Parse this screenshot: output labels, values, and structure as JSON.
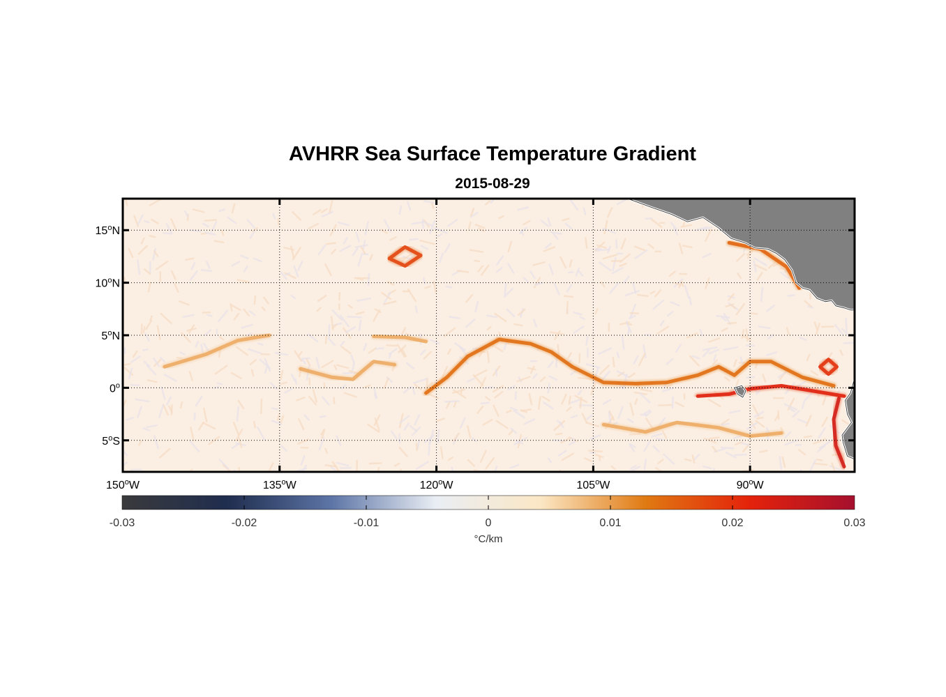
{
  "figure": {
    "title": "AVHRR Sea Surface Temperature Gradient",
    "subtitle": "2015-08-29"
  },
  "map": {
    "lon_range": [
      -150,
      -80
    ],
    "lat_range": [
      -8,
      18
    ],
    "land_color": "#808080",
    "coast_color": "#ffffff",
    "grid": "dotted",
    "lon_ticks": [
      {
        "value": -150,
        "label": "150",
        "suffix": "W"
      },
      {
        "value": -135,
        "label": "135",
        "suffix": "W"
      },
      {
        "value": -120,
        "label": "120",
        "suffix": "W"
      },
      {
        "value": -105,
        "label": "105",
        "suffix": "W"
      },
      {
        "value": -90,
        "label": "90",
        "suffix": "W"
      }
    ],
    "lat_ticks": [
      {
        "value": 15,
        "label": "15",
        "suffix": "N"
      },
      {
        "value": 10,
        "label": "10",
        "suffix": "N"
      },
      {
        "value": 5,
        "label": "5",
        "suffix": "N"
      },
      {
        "value": 0,
        "label": "0",
        "suffix": ""
      },
      {
        "value": -5,
        "label": "5",
        "suffix": "S"
      }
    ],
    "features": [
      {
        "name": "equatorial-front",
        "strength": 0.014,
        "points": [
          [
            -121,
            -0.5
          ],
          [
            -119,
            1
          ],
          [
            -117,
            3
          ],
          [
            -114,
            4.6
          ],
          [
            -111,
            4.2
          ],
          [
            -109,
            3.4
          ],
          [
            -107,
            2
          ],
          [
            -104,
            0.5
          ],
          [
            -101,
            0.4
          ],
          [
            -98,
            0.5
          ],
          [
            -95,
            1.2
          ],
          [
            -93,
            2
          ],
          [
            -91.5,
            1.2
          ],
          [
            -90,
            2.5
          ],
          [
            -88,
            2.5
          ],
          [
            -85,
            1
          ],
          [
            -82,
            0.2
          ]
        ]
      },
      {
        "name": "equatorial-front-south",
        "strength": 0.022,
        "points": [
          [
            -95,
            -0.8
          ],
          [
            -92,
            -0.6
          ],
          [
            -90,
            -0.1
          ],
          [
            -87,
            0.2
          ],
          [
            -84,
            -0.3
          ],
          [
            -81,
            -0.8
          ]
        ]
      },
      {
        "name": "peru-coast-front",
        "strength": 0.024,
        "points": [
          [
            -81.5,
            -1
          ],
          [
            -82,
            -3
          ],
          [
            -81.8,
            -5.5
          ],
          [
            -81,
            -7.5
          ]
        ]
      },
      {
        "name": "north-front",
        "strength": 0.009,
        "points": [
          [
            -126,
            4.9
          ],
          [
            -123,
            4.8
          ],
          [
            -121,
            4.4
          ]
        ]
      },
      {
        "name": "west-filament",
        "strength": 0.009,
        "points": [
          [
            -146,
            2
          ],
          [
            -142,
            3.2
          ],
          [
            -139,
            4.5
          ],
          [
            -136,
            5
          ]
        ]
      },
      {
        "name": "mid-filament",
        "strength": 0.009,
        "points": [
          [
            -133,
            1.8
          ],
          [
            -130,
            1
          ],
          [
            -128,
            0.8
          ],
          [
            -126,
            2.5
          ],
          [
            -124,
            2.2
          ]
        ]
      },
      {
        "name": "south-filament",
        "strength": 0.009,
        "points": [
          [
            -104,
            -3.5
          ],
          [
            -100,
            -4.2
          ],
          [
            -97,
            -3.3
          ],
          [
            -93,
            -3.8
          ],
          [
            -90,
            -4.6
          ],
          [
            -87,
            -4.3
          ]
        ]
      },
      {
        "name": "eddy-ring",
        "strength": 0.018,
        "points": [
          [
            -124.5,
            12.3
          ],
          [
            -123,
            13.4
          ],
          [
            -121.5,
            12.6
          ],
          [
            -123,
            11.6
          ],
          [
            -124.5,
            12.3
          ]
        ]
      },
      {
        "name": "coastal-front",
        "strength": 0.015,
        "points": [
          [
            -92,
            13.8
          ],
          [
            -89,
            13.2
          ],
          [
            -86.5,
            11.5
          ],
          [
            -85.3,
            9.5
          ]
        ]
      },
      {
        "name": "eddy-east",
        "strength": 0.02,
        "points": [
          [
            -83.3,
            2
          ],
          [
            -82.5,
            2.7
          ],
          [
            -81.7,
            2
          ],
          [
            -82.5,
            1.3
          ],
          [
            -83.3,
            2
          ]
        ]
      }
    ],
    "land": [
      {
        "name": "central-america",
        "points": [
          [
            -101.7,
            18
          ],
          [
            -99.5,
            17.2
          ],
          [
            -97.5,
            16.5
          ],
          [
            -96,
            15.8
          ],
          [
            -94.5,
            16.2
          ],
          [
            -93,
            15.2
          ],
          [
            -91.8,
            14.2
          ],
          [
            -90.5,
            13.8
          ],
          [
            -89.5,
            13.3
          ],
          [
            -88.3,
            13.2
          ],
          [
            -87.5,
            12.8
          ],
          [
            -86.7,
            12.2
          ],
          [
            -86,
            11.2
          ],
          [
            -85.6,
            10
          ],
          [
            -85,
            9.5
          ],
          [
            -84.3,
            9.3
          ],
          [
            -83.6,
            8.5
          ],
          [
            -82.8,
            8.2
          ],
          [
            -82.2,
            8.3
          ],
          [
            -81.8,
            7.8
          ],
          [
            -81,
            7.6
          ],
          [
            -80.4,
            7.4
          ],
          [
            -80,
            7.4
          ],
          [
            -80,
            18
          ]
        ]
      },
      {
        "name": "ecuador-peru-coast",
        "points": [
          [
            -80,
            0.9
          ],
          [
            -80.4,
            -0.5
          ],
          [
            -80.9,
            -1.2
          ],
          [
            -80.7,
            -2.5
          ],
          [
            -80.3,
            -3.3
          ],
          [
            -81.2,
            -4.5
          ],
          [
            -81.1,
            -5.2
          ],
          [
            -80.7,
            -6.5
          ],
          [
            -80,
            -6.8
          ]
        ]
      },
      {
        "name": "galapagos-islands",
        "points": [
          [
            -91.5,
            0
          ],
          [
            -90.8,
            0.2
          ],
          [
            -90.4,
            -0.3
          ],
          [
            -90.7,
            -0.9
          ],
          [
            -91.2,
            -0.6
          ]
        ]
      }
    ]
  },
  "colorbar": {
    "min": -0.03,
    "max": 0.03,
    "tick_labels": [
      "-0.03",
      "-0.02",
      "-0.01",
      "0",
      "0.01",
      "0.02",
      "0.03"
    ],
    "label": "°C/km",
    "colors": [
      "#3a3a3c",
      "#1f2d4e",
      "#5d75a6",
      "#eaeef4",
      "#fbe7c5",
      "#e07a12",
      "#e4220b",
      "#a5102e"
    ]
  }
}
